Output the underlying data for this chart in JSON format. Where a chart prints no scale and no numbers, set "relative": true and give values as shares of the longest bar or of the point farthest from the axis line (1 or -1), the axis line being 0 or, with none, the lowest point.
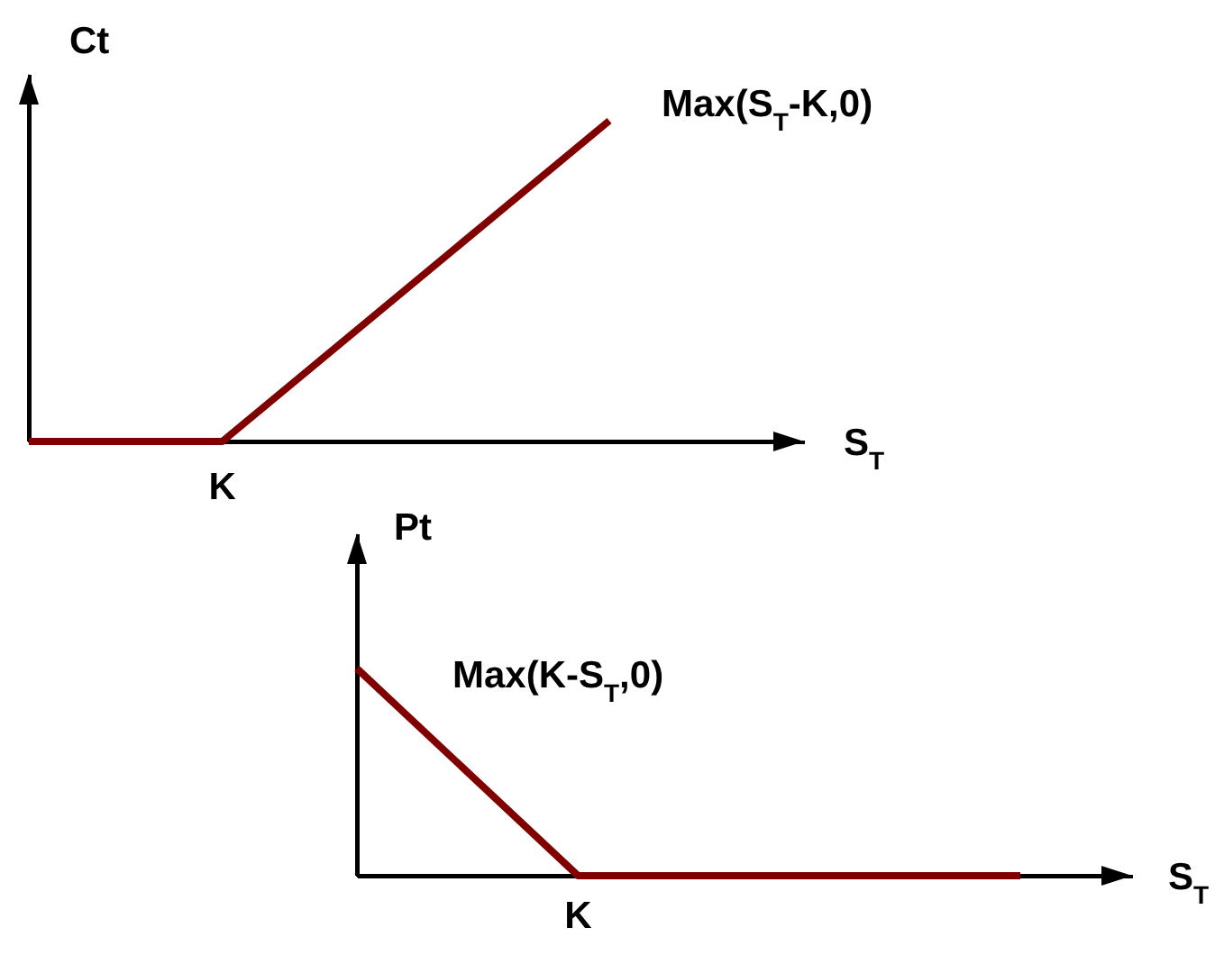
{
  "chart_data": [
    {
      "type": "line",
      "relative": true,
      "ylabel": "Ct",
      "xlabel": "S$_{T}$",
      "categories": [
        null,
        null,
        null,
        null
      ],
      "series": [
        {
          "name": "Max(S$_{T}$-K,0)",
          "color": "#800000",
          "values": [
            0,
            0,
            0.5,
            1
          ]
        }
      ],
      "annotations": [
        "K"
      ]
    },
    {
      "type": "line",
      "relative": true,
      "ylabel": "Pt",
      "xlabel": "S$_{T}$",
      "categories": [
        null,
        null,
        null,
        null
      ],
      "series": [
        {
          "name": "Max(K-S$_{T}$,0)",
          "color": "#800000",
          "values": [
            1,
            0,
            0,
            0
          ]
        }
      ],
      "annotations": [
        "K"
      ]
    }
  ]
}
